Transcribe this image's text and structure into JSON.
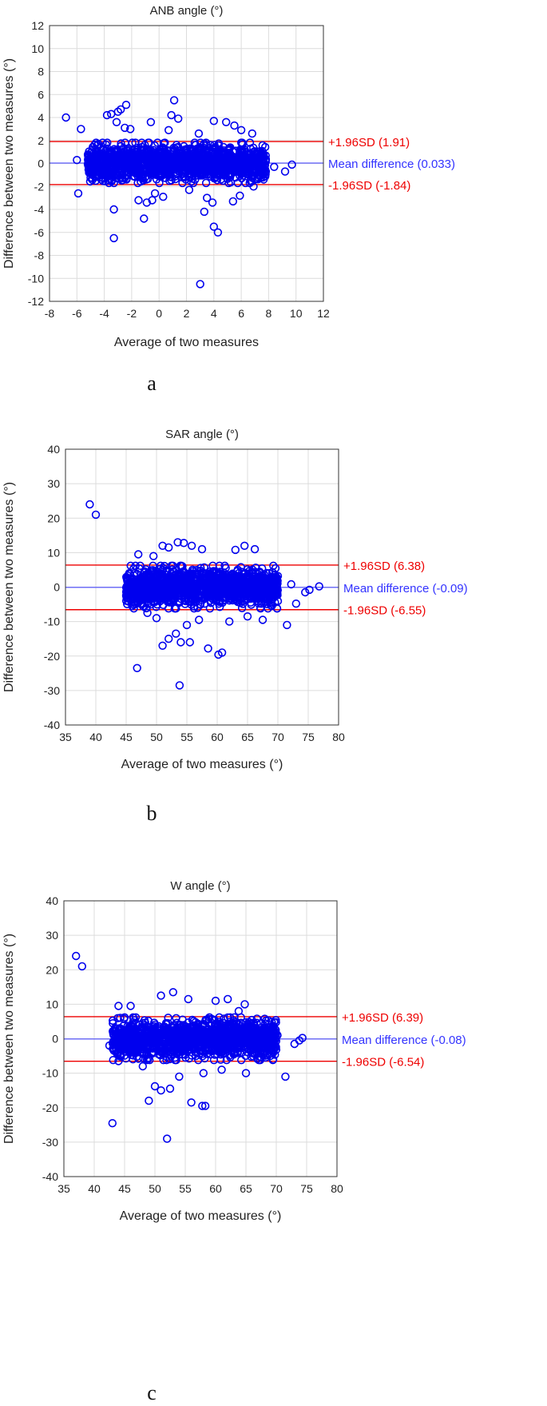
{
  "chart_data": [
    {
      "type": "scatter",
      "panel_label": "a",
      "title": "ANB angle (°)",
      "xlabel": "Average of two measures",
      "ylabel": "Difference between two measures (°)",
      "xlim": [
        -8,
        12
      ],
      "ylim": [
        -12,
        12
      ],
      "xticks": [
        -8,
        -6,
        -4,
        -2,
        0,
        2,
        4,
        6,
        8,
        10,
        12
      ],
      "yticks": [
        -12,
        -10,
        -8,
        -6,
        -4,
        -2,
        0,
        2,
        4,
        6,
        8,
        10,
        12
      ],
      "grid": true,
      "colors": {
        "points": "#0000ee",
        "limits": "#ee0000",
        "mean": "#3333ff"
      },
      "reference_lines": [
        {
          "value": 1.91,
          "label": "+1.96SD (1.91)",
          "kind": "limit"
        },
        {
          "value": 0.033,
          "label": "Mean difference (0.033)",
          "kind": "mean"
        },
        {
          "value": -1.84,
          "label": "-1.96SD (-1.84)",
          "kind": "limit"
        }
      ],
      "cluster": {
        "x_range": [
          -5.2,
          7.8
        ],
        "y_range": [
          -1.7,
          1.8
        ],
        "count": 1500
      },
      "points": [
        [
          -6.8,
          4.0
        ],
        [
          -5.7,
          3.0
        ],
        [
          -6.0,
          0.3
        ],
        [
          -5.9,
          -2.6
        ],
        [
          -3.3,
          -6.5
        ],
        [
          -3.3,
          -4.0
        ],
        [
          -3.8,
          4.2
        ],
        [
          -3.5,
          4.3
        ],
        [
          -3.0,
          4.5
        ],
        [
          -2.8,
          4.7
        ],
        [
          -2.4,
          5.1
        ],
        [
          -2.5,
          3.1
        ],
        [
          -2.1,
          3.0
        ],
        [
          -3.1,
          3.6
        ],
        [
          -0.9,
          -3.4
        ],
        [
          -1.5,
          -3.2
        ],
        [
          -1.1,
          -4.8
        ],
        [
          -0.5,
          -3.2
        ],
        [
          -0.3,
          -2.6
        ],
        [
          0.3,
          -2.9
        ],
        [
          1.1,
          5.5
        ],
        [
          0.9,
          4.2
        ],
        [
          1.4,
          3.9
        ],
        [
          0.7,
          2.9
        ],
        [
          -0.6,
          3.6
        ],
        [
          3.0,
          -10.5
        ],
        [
          3.3,
          -4.2
        ],
        [
          4.0,
          -5.5
        ],
        [
          4.3,
          -6.0
        ],
        [
          3.9,
          -3.4
        ],
        [
          3.5,
          -3.0
        ],
        [
          4.9,
          3.6
        ],
        [
          5.5,
          3.3
        ],
        [
          4.0,
          3.7
        ],
        [
          6.0,
          2.9
        ],
        [
          6.8,
          2.6
        ],
        [
          5.4,
          -3.3
        ],
        [
          5.9,
          -2.8
        ],
        [
          7.4,
          0.9
        ],
        [
          7.6,
          0.4
        ],
        [
          8.4,
          -0.3
        ],
        [
          9.2,
          -0.7
        ],
        [
          9.7,
          -0.1
        ],
        [
          2.9,
          2.6
        ],
        [
          2.2,
          -2.3
        ],
        [
          -4.5,
          1.6
        ],
        [
          6.9,
          -2.0
        ]
      ]
    },
    {
      "type": "scatter",
      "panel_label": "b",
      "title": "SAR angle (°)",
      "xlabel": "Average of two measures (°)",
      "ylabel": "Difference between two measures (°)",
      "xlim": [
        35,
        80
      ],
      "ylim": [
        -40,
        40
      ],
      "xticks": [
        35,
        40,
        45,
        50,
        55,
        60,
        65,
        70,
        75,
        80
      ],
      "yticks": [
        -40,
        -30,
        -20,
        -10,
        0,
        10,
        20,
        30,
        40
      ],
      "grid": true,
      "colors": {
        "points": "#0000ee",
        "limits": "#ee0000",
        "mean": "#3333ff"
      },
      "reference_lines": [
        {
          "value": 6.38,
          "label": "+1.96SD (6.38)",
          "kind": "limit"
        },
        {
          "value": -0.09,
          "label": "Mean difference (-0.09)",
          "kind": "mean"
        },
        {
          "value": -6.55,
          "label": "-1.96SD (-6.55)",
          "kind": "limit"
        }
      ],
      "cluster": {
        "x_range": [
          45,
          70
        ],
        "y_range": [
          -6.2,
          6.2
        ],
        "count": 1500
      },
      "points": [
        [
          39.0,
          24.0
        ],
        [
          40.0,
          21.0
        ],
        [
          46.8,
          -23.5
        ],
        [
          53.8,
          -28.5
        ],
        [
          51.0,
          -17.0
        ],
        [
          54.0,
          -16.0
        ],
        [
          55.5,
          -16.0
        ],
        [
          52.0,
          -15.0
        ],
        [
          53.2,
          -13.5
        ],
        [
          58.5,
          -17.8
        ],
        [
          60.2,
          -19.6
        ],
        [
          60.8,
          -19.0
        ],
        [
          71.5,
          -11.0
        ],
        [
          73.0,
          -4.8
        ],
        [
          74.5,
          -1.5
        ],
        [
          75.2,
          -0.8
        ],
        [
          76.8,
          0.2
        ],
        [
          72.2,
          0.8
        ],
        [
          70.0,
          3.2
        ],
        [
          53.5,
          13.0
        ],
        [
          54.5,
          12.8
        ],
        [
          52.0,
          11.5
        ],
        [
          51.0,
          12.0
        ],
        [
          55.8,
          12.0
        ],
        [
          64.5,
          12.0
        ],
        [
          66.2,
          11.0
        ],
        [
          63.0,
          10.8
        ],
        [
          57.5,
          11.0
        ],
        [
          49.5,
          9.0
        ],
        [
          47.0,
          9.5
        ],
        [
          45.5,
          4.0
        ],
        [
          45.0,
          -2.5
        ],
        [
          46.0,
          -5.5
        ],
        [
          48.5,
          -7.5
        ],
        [
          57.0,
          -9.5
        ],
        [
          67.5,
          -9.5
        ],
        [
          65.0,
          -8.5
        ],
        [
          62.0,
          -10.0
        ],
        [
          50.0,
          -9.0
        ],
        [
          55.0,
          -11.0
        ]
      ]
    },
    {
      "type": "scatter",
      "panel_label": "c",
      "title": "W angle (°)",
      "xlabel": "Average of two measures (°)",
      "ylabel": "Difference between two measures (°)",
      "xlim": [
        35,
        80
      ],
      "ylim": [
        -40,
        40
      ],
      "xticks": [
        35,
        40,
        45,
        50,
        55,
        60,
        65,
        70,
        75,
        80
      ],
      "yticks": [
        -40,
        -30,
        -20,
        -10,
        0,
        10,
        20,
        30,
        40
      ],
      "grid": true,
      "colors": {
        "points": "#0000ee",
        "limits": "#ee0000",
        "mean": "#3333ff"
      },
      "reference_lines": [
        {
          "value": 6.39,
          "label": "+1.96SD (6.39)",
          "kind": "limit"
        },
        {
          "value": -0.08,
          "label": "Mean difference (-0.08)",
          "kind": "mean"
        },
        {
          "value": -6.54,
          "label": "-1.96SD (-6.54)",
          "kind": "limit"
        }
      ],
      "cluster": {
        "x_range": [
          43,
          70
        ],
        "y_range": [
          -6.2,
          6.2
        ],
        "count": 1500
      },
      "points": [
        [
          37.0,
          24.0
        ],
        [
          38.0,
          21.0
        ],
        [
          43.0,
          -24.5
        ],
        [
          52.0,
          -29.0
        ],
        [
          49.0,
          -18.0
        ],
        [
          56.0,
          -18.5
        ],
        [
          57.8,
          -19.5
        ],
        [
          58.3,
          -19.5
        ],
        [
          50.0,
          -13.8
        ],
        [
          51.0,
          -15.0
        ],
        [
          52.5,
          -14.5
        ],
        [
          71.5,
          -11.0
        ],
        [
          73.0,
          -1.5
        ],
        [
          73.8,
          -0.5
        ],
        [
          74.3,
          0.2
        ],
        [
          70.2,
          1.0
        ],
        [
          53.0,
          13.5
        ],
        [
          51.0,
          12.5
        ],
        [
          55.5,
          11.5
        ],
        [
          60.0,
          11.0
        ],
        [
          62.0,
          11.5
        ],
        [
          64.8,
          10.0
        ],
        [
          44.0,
          9.5
        ],
        [
          46.0,
          9.5
        ],
        [
          43.5,
          3.0
        ],
        [
          42.5,
          -2.0
        ],
        [
          44.0,
          -6.5
        ],
        [
          48.0,
          -8.0
        ],
        [
          58.0,
          -10.0
        ],
        [
          65.0,
          -10.0
        ],
        [
          69.0,
          -5.0
        ],
        [
          61.0,
          -9.0
        ],
        [
          54.0,
          -11.0
        ],
        [
          46.5,
          6.0
        ],
        [
          63.8,
          8.0
        ]
      ]
    }
  ]
}
